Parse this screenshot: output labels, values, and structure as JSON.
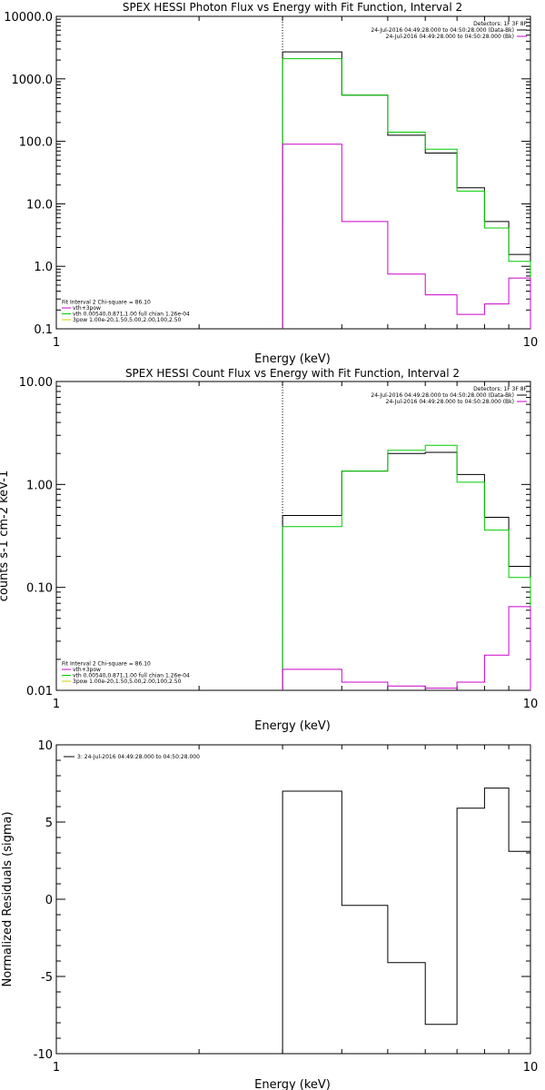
{
  "chart_data": [
    {
      "type": "line",
      "step": true,
      "title": "SPEX HESSI Photon Flux vs Energy with Fit Function, Interval 2",
      "xlabel": "Energy (keV)",
      "ylabel": "",
      "xscale": "log",
      "yscale": "log",
      "xlim": [
        1,
        10
      ],
      "ylim": [
        0.1,
        10000
      ],
      "xticks": [
        {
          "v": 1,
          "label": "1"
        },
        {
          "v": 10,
          "label": "10"
        }
      ],
      "yticks": [
        {
          "v": 0.1,
          "label": "0.1"
        },
        {
          "v": 1,
          "label": "1.0"
        },
        {
          "v": 10,
          "label": "10.0"
        },
        {
          "v": 100,
          "label": "100.0"
        },
        {
          "v": 1000,
          "label": "1000.0"
        },
        {
          "v": 10000,
          "label": "10000.0"
        }
      ],
      "vline_x": 3,
      "edges": [
        3.0,
        4.0,
        5.0,
        6.0,
        7.0,
        8.0,
        9.0,
        10.0
      ],
      "series": [
        {
          "color": "#000000",
          "values": [
            2700,
            550,
            125,
            65,
            18,
            5.2,
            1.55
          ]
        },
        {
          "color": "#00cc00",
          "values": [
            2100,
            550,
            140,
            75,
            16,
            4.1,
            1.2
          ]
        },
        {
          "color": "#cc00cc",
          "values": [
            90,
            5.2,
            0.75,
            0.35,
            0.17,
            0.25,
            0.65
          ]
        }
      ],
      "legend_tr": {
        "heading": "Detectors: 1F 3F 8F",
        "entries": [
          {
            "text": "24-Jul-2016 04:49:28.000 to 04:50:28.000 (Data-Bk)",
            "color": "#000000"
          },
          {
            "text": "24-Jul-2016 04:49:28.000 to 04:50:28.000 (Bk)",
            "color": "#cc00cc"
          }
        ]
      },
      "legend_bl": [
        {
          "text": "Fit Interval 2   Chi-square = 86.10",
          "color": ""
        },
        {
          "text": "vth+3pow",
          "color": "#cc00cc"
        },
        {
          "text": "vth 0.00540,0.871,1.00  full chian 1.26e-04",
          "color": "#00cc00"
        },
        {
          "text": "3pow 1.00e-20,1.50,5.00,2.00,100,2.50",
          "color": "#cccc00"
        }
      ]
    },
    {
      "type": "line",
      "step": true,
      "title": "SPEX HESSI Count Flux vs Energy with Fit Function, Interval 2",
      "xlabel": "Energy (keV)",
      "ylabel": "counts s-1 cm-2 keV-1",
      "xscale": "log",
      "yscale": "log",
      "xlim": [
        1,
        10
      ],
      "ylim": [
        0.01,
        10
      ],
      "xticks": [
        {
          "v": 1,
          "label": "1"
        },
        {
          "v": 10,
          "label": "10"
        }
      ],
      "yticks": [
        {
          "v": 0.01,
          "label": "0.01"
        },
        {
          "v": 0.1,
          "label": "0.10"
        },
        {
          "v": 1,
          "label": "1.00"
        },
        {
          "v": 10,
          "label": "10.00"
        }
      ],
      "vline_x": 3,
      "edges": [
        3.0,
        4.0,
        5.0,
        6.0,
        7.0,
        8.0,
        9.0,
        10.0
      ],
      "series": [
        {
          "color": "#000000",
          "values": [
            0.5,
            1.35,
            2.0,
            2.05,
            1.25,
            0.48,
            0.16
          ]
        },
        {
          "color": "#00cc00",
          "values": [
            0.39,
            1.35,
            2.15,
            2.4,
            1.05,
            0.36,
            0.125
          ]
        },
        {
          "color": "#cc00cc",
          "values": [
            0.016,
            0.012,
            0.011,
            0.0105,
            0.012,
            0.022,
            0.065
          ]
        }
      ],
      "legend_tr": {
        "heading": "Detectors: 1F 3F 8F",
        "entries": [
          {
            "text": "24-Jul-2016 04:49:28.000 to 04:50:28.000 (Data-Bk)",
            "color": "#000000"
          },
          {
            "text": "24-Jul-2016 04:49:28.000 to 04:50:28.000 (Bk)",
            "color": "#cc00cc"
          }
        ]
      },
      "legend_bl": [
        {
          "text": "Fit Interval 2   Chi-square = 86.10",
          "color": ""
        },
        {
          "text": "vth+3pow",
          "color": "#cc00cc"
        },
        {
          "text": "vth 0.00540,0.871,1.00  full chian 1.26e-04",
          "color": "#00cc00"
        },
        {
          "text": "3pow 1.00e-20,1.50,5.00,2.00,100,2.50",
          "color": "#cccc00"
        }
      ]
    },
    {
      "type": "line",
      "step": true,
      "title": "",
      "xlabel": "Energy (keV)",
      "ylabel": "Normalized Residuals (sigma)",
      "xscale": "log",
      "yscale": "linear",
      "xlim": [
        1,
        10
      ],
      "ylim": [
        -10,
        10
      ],
      "xticks": [
        {
          "v": 1,
          "label": "1"
        },
        {
          "v": 10,
          "label": "10"
        }
      ],
      "yticks": [
        {
          "v": -10,
          "label": "-10"
        },
        {
          "v": -5,
          "label": "-5"
        },
        {
          "v": 0,
          "label": "0"
        },
        {
          "v": 5,
          "label": "5"
        },
        {
          "v": 10,
          "label": "10"
        }
      ],
      "edges": [
        3.0,
        4.0,
        5.0,
        6.0,
        7.0,
        8.0,
        9.0,
        10.0
      ],
      "series": [
        {
          "color": "#000000",
          "values": [
            7.0,
            -0.4,
            -4.1,
            -8.1,
            5.9,
            7.2,
            3.1
          ]
        }
      ],
      "legend_tl": [
        {
          "text": "3: 24-Jul-2016 04:49:28.000 to 04:50:28.000",
          "color": "#000000"
        }
      ]
    }
  ]
}
